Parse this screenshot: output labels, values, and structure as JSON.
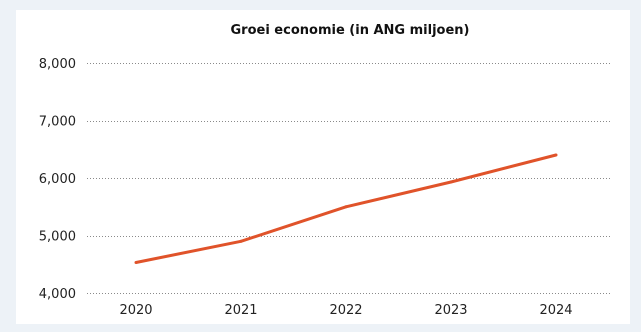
{
  "chart_data": {
    "type": "line",
    "title": "Groei economie (in ANG miljoen)",
    "xlabel": "",
    "ylabel": "",
    "categories": [
      "2020",
      "2021",
      "2022",
      "2023",
      "2024"
    ],
    "series": [
      {
        "values": [
          4530,
          4900,
          5500,
          5930,
          6400
        ]
      }
    ],
    "ylim": [
      4000,
      8000
    ],
    "yticks": [
      4000,
      5000,
      6000,
      7000,
      8000
    ],
    "ytick_labels": [
      "4,000",
      "5,000",
      "6,000",
      "7,000",
      "8,000"
    ],
    "grid": true,
    "legend": "none",
    "line_color": "#e0532a"
  }
}
